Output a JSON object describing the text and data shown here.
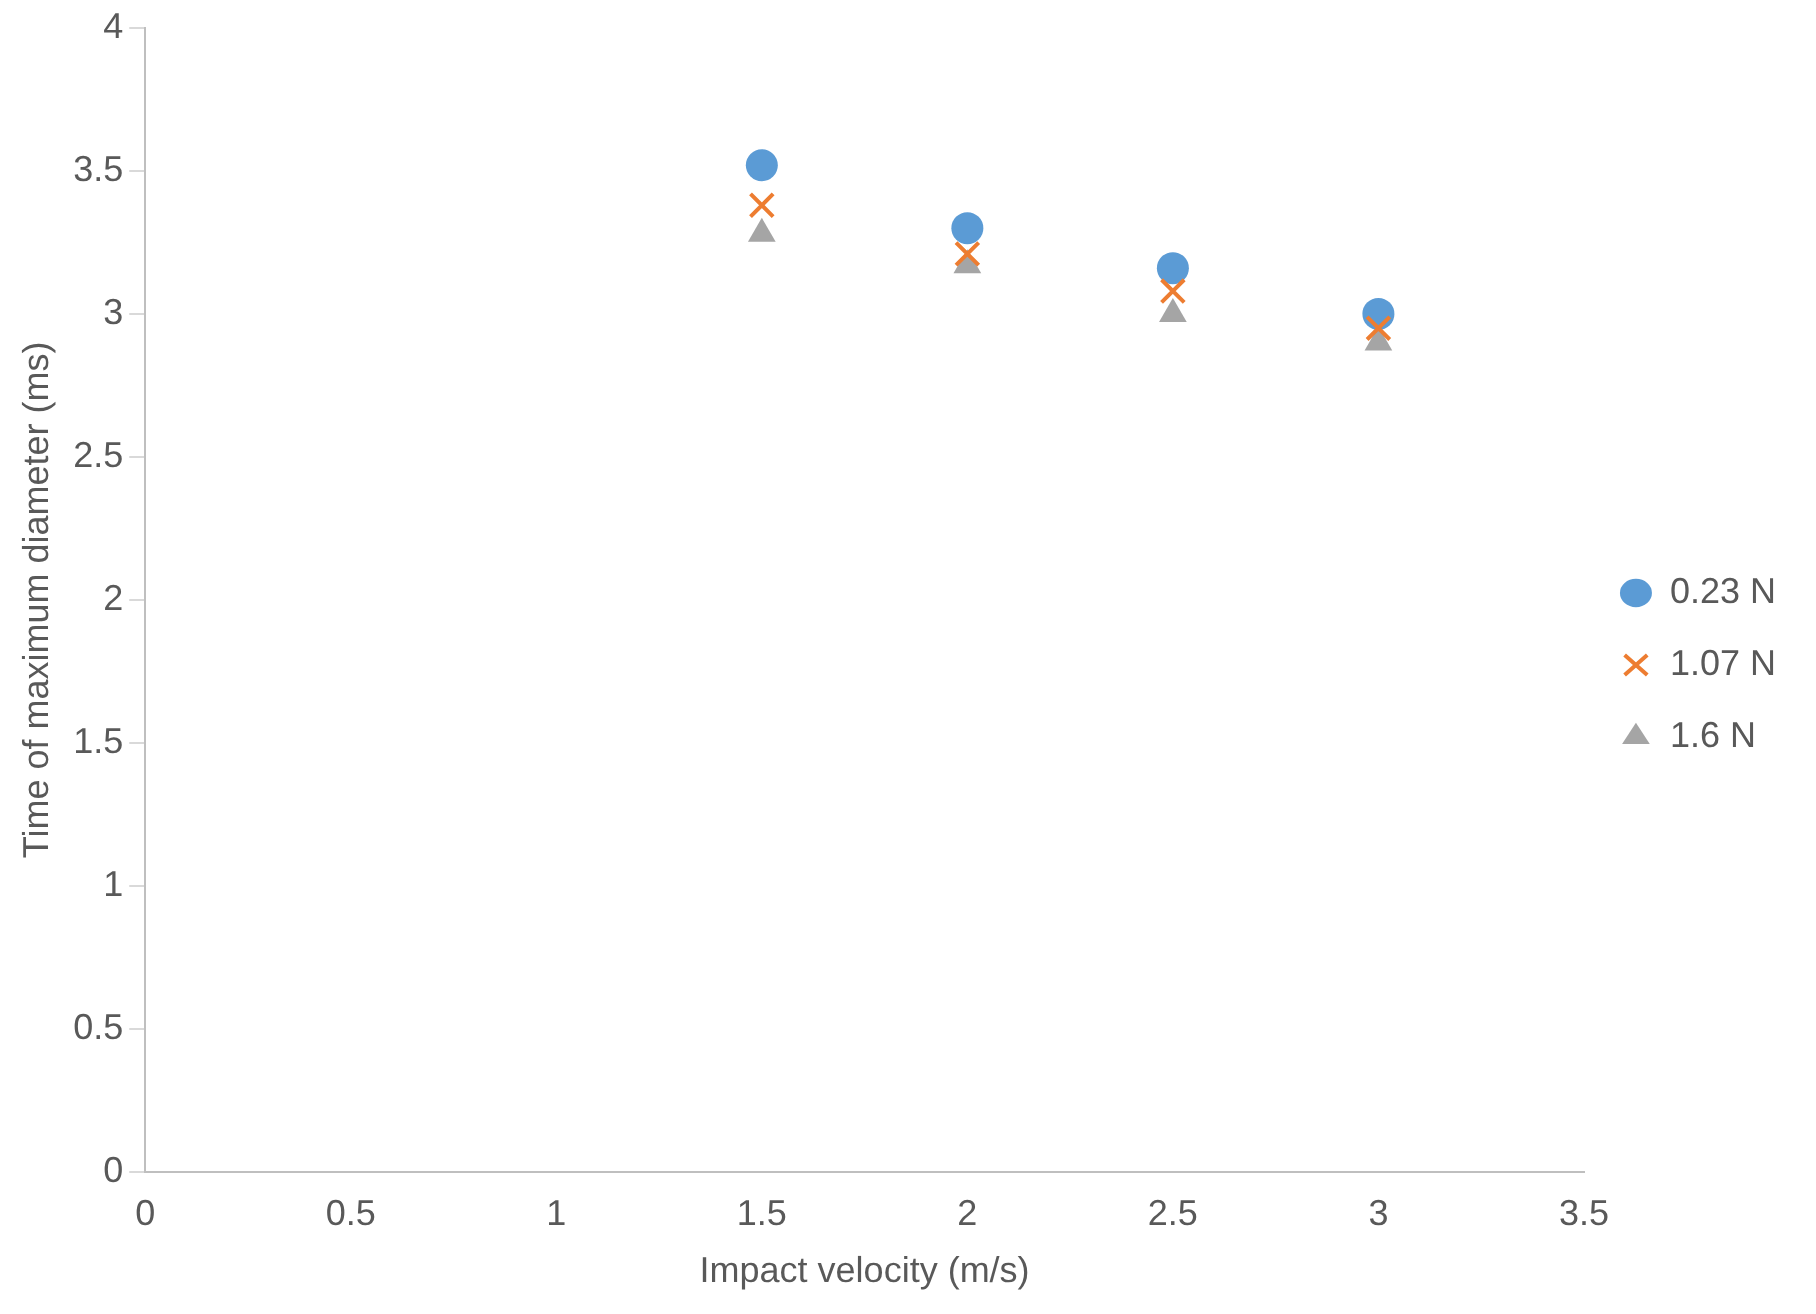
{
  "chart_data": {
    "type": "scatter",
    "xlabel": "Impact velocity (m/s)",
    "ylabel": "Time of maximum diameter (ms)",
    "xlim": [
      0,
      3.5
    ],
    "xticks": [
      0,
      0.5,
      1,
      1.5,
      2,
      2.5,
      3,
      3.5
    ],
    "ylim": [
      0,
      4
    ],
    "yticks": [
      0,
      0.5,
      1,
      1.5,
      2,
      2.5,
      3,
      3.5,
      4
    ],
    "grid": false,
    "legend": "right",
    "series": [
      {
        "name": "0.23 N",
        "color": "#5b9bd5",
        "marker": "circle",
        "x": [
          1.5,
          2,
          2.5,
          3
        ],
        "values": [
          3.52,
          3.3,
          3.16,
          3.0
        ]
      },
      {
        "name": "1.07 N",
        "color": "#ed7d31",
        "marker": "cross",
        "x": [
          1.5,
          2,
          2.5,
          3
        ],
        "values": [
          3.38,
          3.21,
          3.08,
          2.95
        ]
      },
      {
        "name": "1.6 N",
        "color": "#a5a5a5",
        "marker": "triangle",
        "x": [
          1.5,
          2,
          2.5,
          3
        ],
        "values": [
          3.28,
          3.17,
          3.0,
          2.9
        ]
      }
    ]
  }
}
